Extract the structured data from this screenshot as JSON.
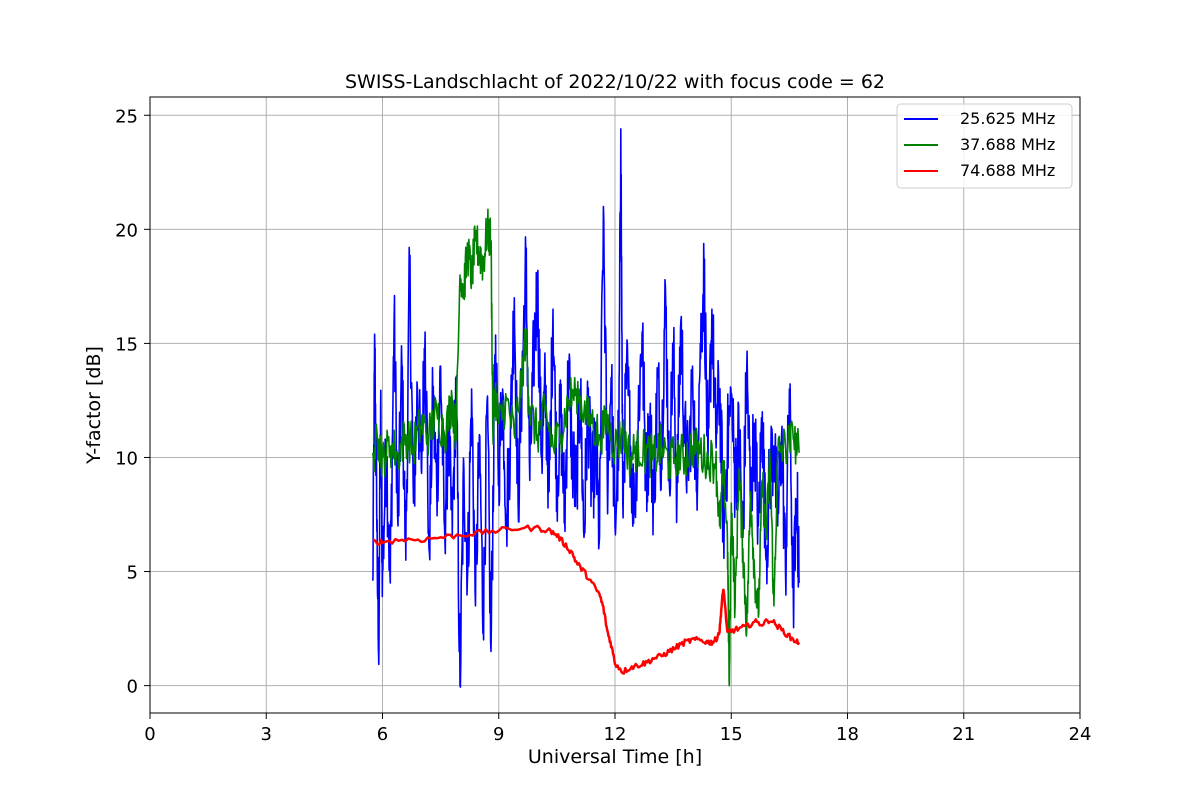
{
  "chart_data": {
    "type": "line",
    "title": "SWISS-Landschlacht of 2022/10/22 with focus code = 62",
    "xlabel": "Universal Time [h]",
    "ylabel": "Y-factor [dB]",
    "xlim": [
      0,
      24
    ],
    "ylim": [
      -1.2,
      25.8
    ],
    "xticks": [
      0,
      3,
      6,
      9,
      12,
      15,
      18,
      21,
      24
    ],
    "yticks": [
      0,
      5,
      10,
      15,
      20,
      25
    ],
    "grid": true,
    "legend_position": "top-right",
    "series": [
      {
        "name": "25.625 MHz",
        "color": "#0000ff",
        "x": [
          5.75,
          5.8,
          5.85,
          5.9,
          5.95,
          6.0,
          6.1,
          6.2,
          6.3,
          6.4,
          6.5,
          6.6,
          6.7,
          6.8,
          6.9,
          7.0,
          7.1,
          7.2,
          7.3,
          7.4,
          7.5,
          7.6,
          7.7,
          7.8,
          7.9,
          8.0,
          8.1,
          8.2,
          8.3,
          8.4,
          8.5,
          8.6,
          8.7,
          8.8,
          8.9,
          9.0,
          9.1,
          9.2,
          9.3,
          9.4,
          9.5,
          9.6,
          9.7,
          9.8,
          9.9,
          10.0,
          10.1,
          10.2,
          10.3,
          10.4,
          10.5,
          10.6,
          10.7,
          10.8,
          10.9,
          11.0,
          11.1,
          11.2,
          11.3,
          11.4,
          11.5,
          11.6,
          11.7,
          11.8,
          11.9,
          12.0,
          12.1,
          12.15,
          12.2,
          12.3,
          12.4,
          12.5,
          12.6,
          12.7,
          12.8,
          12.9,
          13.0,
          13.1,
          13.2,
          13.3,
          13.4,
          13.5,
          13.6,
          13.7,
          13.8,
          13.9,
          14.0,
          14.1,
          14.2,
          14.3,
          14.4,
          14.5,
          14.6,
          14.7,
          14.8,
          14.9,
          15.0,
          15.1,
          15.2,
          15.3,
          15.4,
          15.5,
          15.6,
          15.7,
          15.8,
          15.9,
          16.0,
          16.1,
          16.2,
          16.3,
          16.4,
          16.5,
          16.6,
          16.7,
          16.75
        ],
        "y": [
          4.6,
          15.0,
          7.5,
          1.3,
          12.0,
          5.0,
          10.5,
          4.5,
          16.0,
          7.0,
          14.0,
          5.5,
          18.3,
          8.0,
          13.0,
          9.5,
          15.5,
          6.0,
          12.5,
          8.5,
          14.0,
          7.0,
          11.0,
          6.5,
          13.5,
          0.0,
          9.5,
          5.0,
          13.0,
          3.5,
          11.0,
          2.5,
          12.5,
          1.5,
          14.5,
          9.5,
          13.0,
          7.5,
          11.0,
          17.0,
          8.0,
          13.5,
          18.5,
          9.0,
          14.5,
          17.5,
          10.0,
          13.0,
          8.5,
          16.5,
          9.0,
          12.0,
          7.5,
          14.0,
          10.0,
          8.5,
          13.0,
          6.5,
          12.5,
          8.5,
          10.5,
          6.5,
          21.0,
          9.0,
          13.5,
          7.0,
          11.0,
          24.4,
          8.0,
          14.0,
          10.5,
          7.5,
          12.0,
          15.5,
          9.0,
          11.5,
          8.0,
          13.5,
          10.0,
          17.5,
          9.0,
          15.0,
          8.5,
          16.0,
          11.0,
          9.0,
          14.0,
          8.5,
          15.0,
          18.0,
          9.5,
          16.5,
          11.0,
          13.0,
          7.0,
          10.5,
          12.5,
          9.0,
          11.0,
          6.5,
          14.0,
          8.0,
          11.5,
          7.0,
          12.0,
          5.5,
          9.5,
          10.5,
          7.0,
          11.0,
          5.0,
          13.0,
          4.0,
          8.0,
          4.5
        ],
        "style": "noisy"
      },
      {
        "name": "37.688 MHz",
        "color": "#008000",
        "x": [
          5.75,
          5.9,
          6.0,
          6.2,
          6.4,
          6.6,
          6.8,
          7.0,
          7.2,
          7.4,
          7.6,
          7.8,
          7.9,
          8.0,
          8.1,
          8.2,
          8.3,
          8.4,
          8.5,
          8.6,
          8.7,
          8.8,
          8.85,
          8.9,
          9.0,
          9.2,
          9.4,
          9.6,
          9.7,
          9.8,
          10.0,
          10.2,
          10.4,
          10.6,
          10.8,
          11.0,
          11.2,
          11.4,
          11.6,
          11.8,
          12.0,
          12.2,
          12.4,
          12.6,
          12.8,
          13.0,
          13.2,
          13.4,
          13.6,
          13.8,
          14.0,
          14.2,
          14.4,
          14.6,
          14.7,
          14.8,
          14.9,
          14.95,
          15.0,
          15.1,
          15.2,
          15.3,
          15.4,
          15.5,
          15.6,
          15.7,
          15.8,
          15.9,
          16.0,
          16.1,
          16.2,
          16.4,
          16.6,
          16.75
        ],
        "y": [
          10.2,
          10.8,
          10.0,
          10.5,
          10.2,
          11.0,
          10.5,
          11.5,
          11.0,
          12.0,
          11.0,
          12.5,
          11.0,
          18.0,
          17.5,
          19.0,
          18.0,
          19.5,
          19.0,
          18.5,
          20.0,
          19.5,
          11.0,
          13.0,
          11.5,
          12.5,
          11.0,
          13.5,
          15.5,
          12.0,
          11.0,
          12.0,
          10.5,
          11.0,
          12.5,
          13.0,
          12.0,
          11.5,
          11.0,
          11.5,
          10.5,
          11.0,
          10.0,
          10.5,
          10.2,
          10.0,
          10.5,
          9.8,
          10.2,
          10.0,
          10.5,
          10.2,
          10.0,
          9.8,
          7.0,
          9.5,
          6.5,
          0.0,
          8.0,
          3.5,
          9.5,
          6.0,
          2.5,
          8.5,
          5.0,
          3.0,
          9.0,
          6.5,
          10.0,
          3.5,
          10.2,
          10.5,
          10.8,
          10.2
        ],
        "style": "noisy"
      },
      {
        "name": "74.688 MHz",
        "color": "#ff0000",
        "x": [
          5.75,
          6.0,
          6.5,
          7.0,
          7.5,
          8.0,
          8.5,
          9.0,
          9.5,
          10.0,
          10.3,
          10.5,
          10.7,
          10.9,
          11.0,
          11.2,
          11.4,
          11.6,
          11.7,
          11.8,
          11.9,
          12.0,
          12.2,
          12.4,
          12.6,
          12.8,
          13.0,
          13.2,
          13.4,
          13.6,
          13.8,
          14.0,
          14.2,
          14.4,
          14.5,
          14.6,
          14.7,
          14.75,
          14.8,
          14.9,
          15.0,
          15.2,
          15.4,
          15.6,
          15.8,
          16.0,
          16.2,
          16.4,
          16.6,
          16.75
        ],
        "y": [
          6.3,
          6.3,
          6.4,
          6.4,
          6.5,
          6.6,
          6.7,
          6.8,
          6.9,
          6.9,
          6.8,
          6.6,
          6.2,
          5.8,
          5.4,
          5.0,
          4.5,
          4.0,
          3.4,
          2.4,
          1.8,
          1.0,
          0.6,
          0.8,
          0.9,
          1.0,
          1.2,
          1.3,
          1.5,
          1.7,
          1.9,
          2.0,
          2.0,
          1.9,
          1.9,
          2.0,
          2.4,
          3.5,
          4.3,
          2.3,
          2.4,
          2.5,
          2.6,
          2.8,
          2.7,
          2.9,
          2.6,
          2.3,
          2.0,
          1.9
        ],
        "style": "smooth"
      }
    ]
  }
}
